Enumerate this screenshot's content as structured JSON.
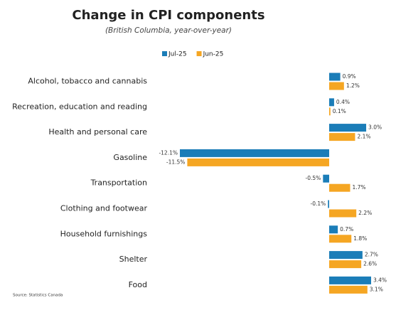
{
  "chart_data": {
    "type": "hbar",
    "title": "Change in CPI components",
    "subtitle": "(British Columbia, year-over-year)",
    "source": "Source: Statistics Canada",
    "categories": [
      "Alcohol, tobacco and cannabis",
      "Recreation, education and reading",
      "Health and personal care",
      "Gasoline",
      "Transportation",
      "Clothing and footwear",
      "Household furnishings",
      "Shelter",
      "Food"
    ],
    "series": [
      {
        "name": "Jul-25",
        "color": "#1b7db8",
        "values": [
          0.9,
          0.4,
          3.0,
          -12.1,
          -0.5,
          -0.1,
          0.7,
          2.7,
          3.4
        ],
        "value_labels": [
          "0.9%",
          "0.4%",
          "3.0%",
          "-12.1%",
          "-0.5%",
          "-0.1%",
          "0.7%",
          "2.7%",
          "3.4%"
        ]
      },
      {
        "name": "Jun-25",
        "color": "#f5a623",
        "values": [
          1.2,
          0.1,
          2.1,
          -11.5,
          1.7,
          2.2,
          1.8,
          2.6,
          3.1
        ],
        "value_labels": [
          "1.2%",
          "0.1%",
          "2.1%",
          "-11.5%",
          "1.7%",
          "2.2%",
          "1.8%",
          "2.6%",
          "3.1%"
        ]
      }
    ],
    "legend": "top"
  }
}
